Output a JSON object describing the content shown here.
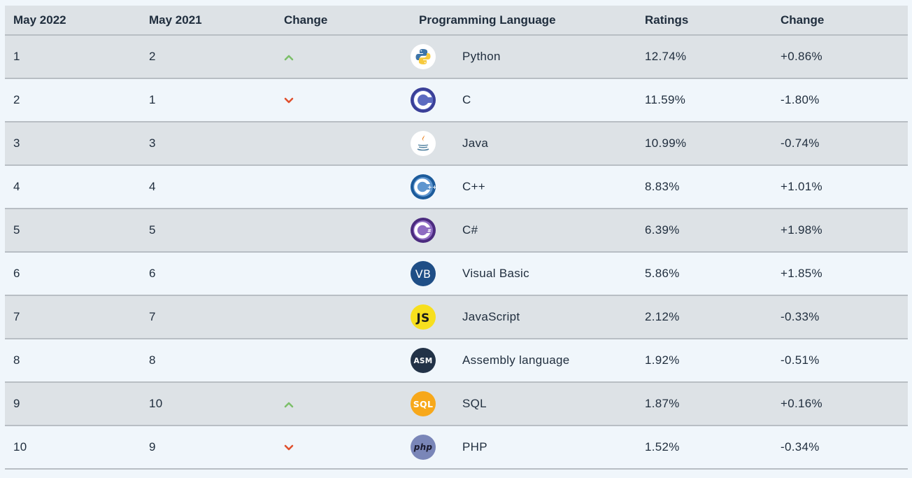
{
  "header": {
    "col1": "May 2022",
    "col2": "May 2021",
    "col3": "Change",
    "col4": "Programming Language",
    "col5": "Ratings",
    "col6": "Change"
  },
  "colors": {
    "up": "#7cbf6a",
    "down": "#e0502d"
  },
  "rows": [
    {
      "rank_2022": "1",
      "rank_2021": "2",
      "trend": "up",
      "language": "Python",
      "logo_icon": "python-logo-icon",
      "rating": "12.74%",
      "change": "+0.86%"
    },
    {
      "rank_2022": "2",
      "rank_2021": "1",
      "trend": "down",
      "language": "C",
      "logo_icon": "c-logo-icon",
      "rating": "11.59%",
      "change": "-1.80%"
    },
    {
      "rank_2022": "3",
      "rank_2021": "3",
      "trend": "none",
      "language": "Java",
      "logo_icon": "java-logo-icon",
      "rating": "10.99%",
      "change": "-0.74%"
    },
    {
      "rank_2022": "4",
      "rank_2021": "4",
      "trend": "none",
      "language": "C++",
      "logo_icon": "cpp-logo-icon",
      "rating": "8.83%",
      "change": "+1.01%"
    },
    {
      "rank_2022": "5",
      "rank_2021": "5",
      "trend": "none",
      "language": "C#",
      "logo_icon": "csharp-logo-icon",
      "rating": "6.39%",
      "change": "+1.98%"
    },
    {
      "rank_2022": "6",
      "rank_2021": "6",
      "trend": "none",
      "language": "Visual Basic",
      "logo_icon": "vb-logo-icon",
      "logo_text": "VB",
      "rating": "5.86%",
      "change": "+1.85%"
    },
    {
      "rank_2022": "7",
      "rank_2021": "7",
      "trend": "none",
      "language": "JavaScript",
      "logo_icon": "js-logo-icon",
      "logo_text": "JS",
      "rating": "2.12%",
      "change": "-0.33%"
    },
    {
      "rank_2022": "8",
      "rank_2021": "8",
      "trend": "none",
      "language": "Assembly language",
      "logo_icon": "asm-logo-icon",
      "logo_text": "ASM",
      "rating": "1.92%",
      "change": "-0.51%"
    },
    {
      "rank_2022": "9",
      "rank_2021": "10",
      "trend": "up",
      "language": "SQL",
      "logo_icon": "sql-logo-icon",
      "logo_text": "SQL",
      "rating": "1.87%",
      "change": "+0.16%"
    },
    {
      "rank_2022": "10",
      "rank_2021": "9",
      "trend": "down",
      "language": "PHP",
      "logo_icon": "php-logo-icon",
      "logo_text": "php",
      "rating": "1.52%",
      "change": "-0.34%"
    }
  ]
}
